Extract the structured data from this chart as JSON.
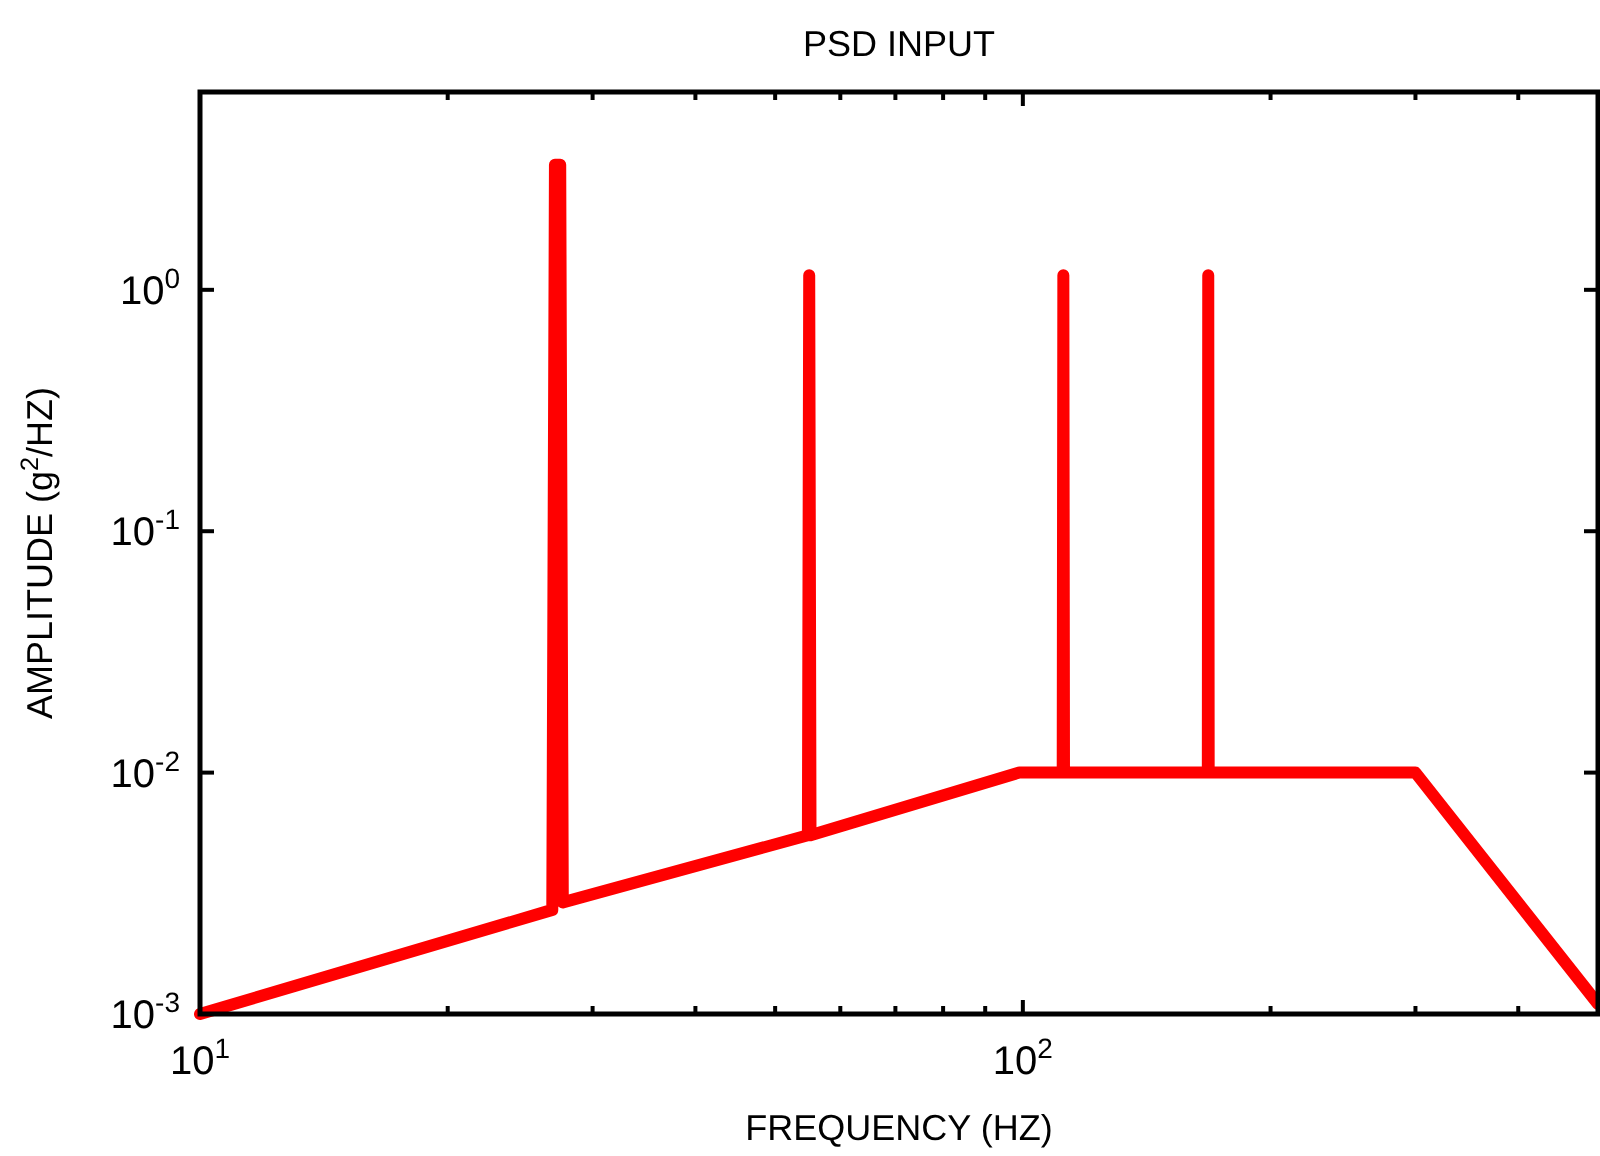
{
  "chart_data": {
    "type": "line",
    "title": "PSD INPUT",
    "xlabel": "FREQUENCY (HZ)",
    "ylabel": "AMPLITUDE (g$^{2}$/HZ)",
    "log": "xy",
    "grid": false,
    "marker": "none",
    "line_style": "solid",
    "xlim": [
      10,
      500
    ],
    "ylim": [
      0.001,
      6.6
    ],
    "xticks": [
      {
        "value": 10,
        "label": "10$^{1}$"
      },
      {
        "value": 20,
        "label": null
      },
      {
        "value": 30,
        "label": null
      },
      {
        "value": 40,
        "label": null
      },
      {
        "value": 50,
        "label": null
      },
      {
        "value": 60,
        "label": null
      },
      {
        "value": 70,
        "label": null
      },
      {
        "value": 80,
        "label": null
      },
      {
        "value": 90,
        "label": null
      },
      {
        "value": 100,
        "label": "10$^{2}$"
      },
      {
        "value": 200,
        "label": null
      },
      {
        "value": 300,
        "label": null
      },
      {
        "value": 400,
        "label": null
      }
    ],
    "yticks": [
      {
        "value": 0.001,
        "label": "10$^{-3}$"
      },
      {
        "value": 0.01,
        "label": "10$^{-2}$"
      },
      {
        "value": 0.1,
        "label": "10$^{-1}$"
      },
      {
        "value": 1,
        "label": "10$^{0}$"
      }
    ],
    "series": [
      {
        "color": "#ff0000",
        "x": [
          10,
          26.8,
          27.0,
          27.4,
          27.6,
          54.8,
          55.0,
          55.2,
          99,
          111.8,
          112,
          112.2,
          167.8,
          168,
          168.2,
          300,
          500
        ],
        "values": [
          0.001,
          0.0027,
          3.3,
          3.3,
          0.0029,
          0.0055,
          1.15,
          0.0055,
          0.01,
          0.01,
          1.15,
          0.01,
          0.01,
          1.15,
          0.01,
          0.01,
          0.0011
        ]
      }
    ]
  }
}
